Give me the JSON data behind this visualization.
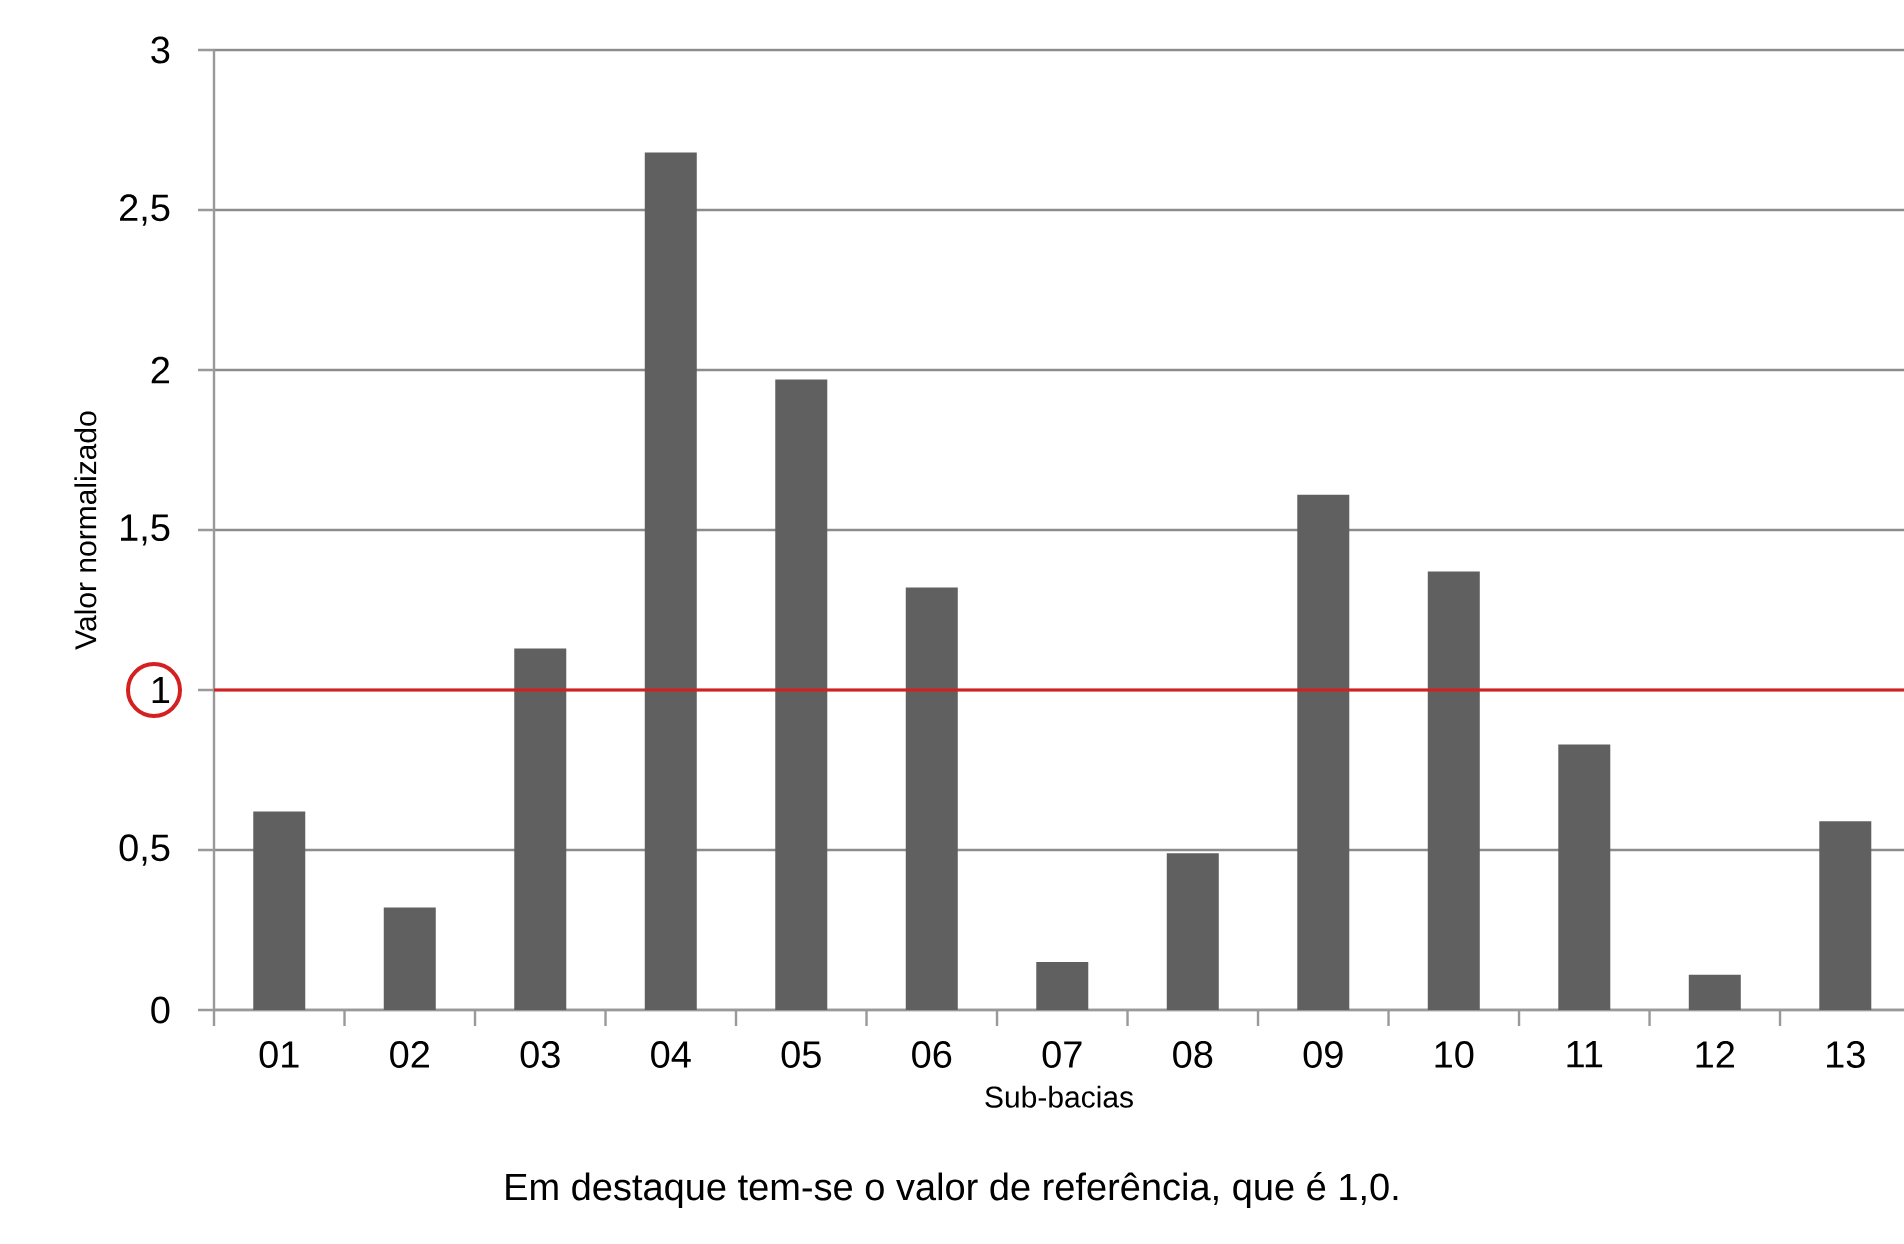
{
  "chart_data": {
    "type": "bar",
    "xlabel": "Sub-bacias",
    "ylabel": "Valor normalizado",
    "categories": [
      "01",
      "02",
      "03",
      "04",
      "05",
      "06",
      "07",
      "08",
      "09",
      "10",
      "11",
      "12",
      "13"
    ],
    "values": [
      0.62,
      0.32,
      1.13,
      2.68,
      1.97,
      1.32,
      0.15,
      0.49,
      1.61,
      1.37,
      0.83,
      0.11,
      0.59
    ],
    "color": "#606060",
    "ylim": [
      0,
      3
    ],
    "yticks": [
      0,
      {
        "value": 0.5,
        "label": "0,5"
      },
      1,
      {
        "value": 1.5,
        "label": "1,5"
      },
      2,
      {
        "value": 2.5,
        "label": "2,5"
      },
      3
    ],
    "grid": "y",
    "ref_lines": [
      {
        "axis": "y",
        "value": 1,
        "color": "#d42020"
      }
    ],
    "annotations": [
      "Em destaque tem-se o valor de referência, que é 1,0."
    ]
  }
}
